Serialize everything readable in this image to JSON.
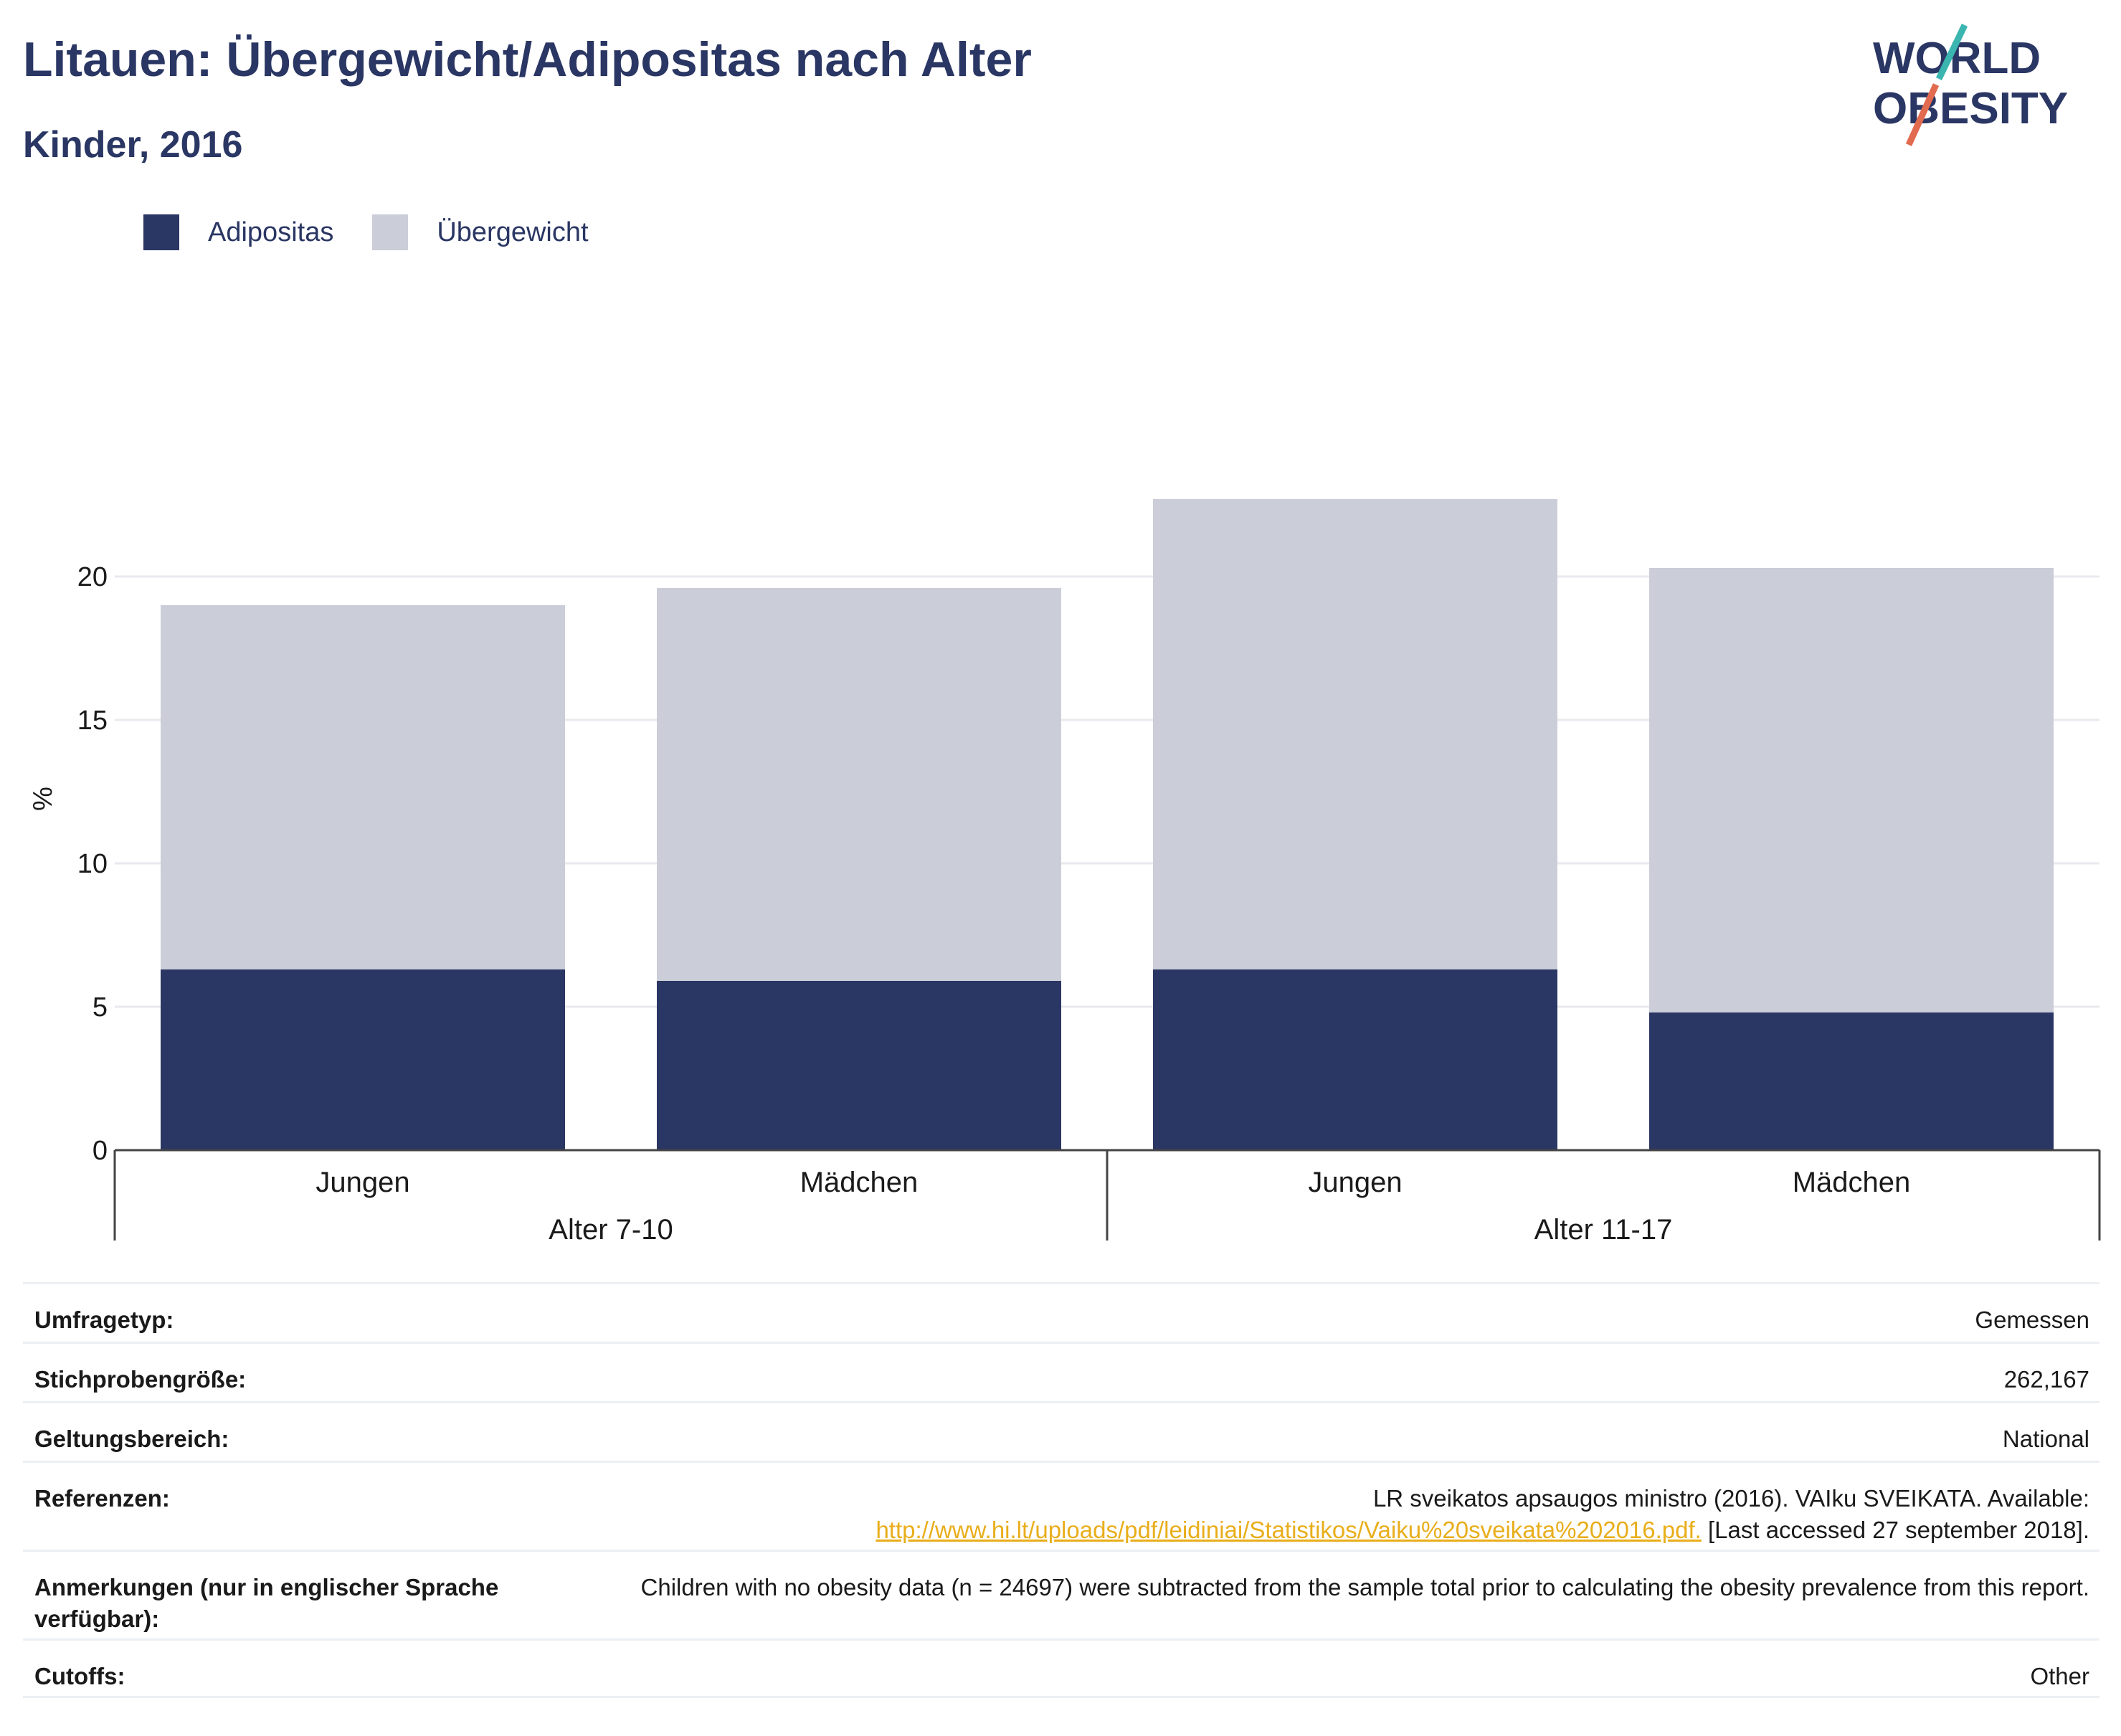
{
  "title": "Litauen: Übergewicht/Adipositas nach Alter",
  "subtitle": "Kinder, 2016",
  "logo": {
    "line1": "WORLD",
    "line2": "OBESITY",
    "accent_teal": "#3bb5b0",
    "accent_red": "#e26a4f"
  },
  "legend": [
    {
      "label": "Adipositas",
      "color": "#2a3663"
    },
    {
      "label": "Übergewicht",
      "color": "#cbcdd8"
    }
  ],
  "chart_data": {
    "type": "bar",
    "stacked": true,
    "categories": [
      "Jungen",
      "Mädchen",
      "Jungen",
      "Mädchen"
    ],
    "groups": [
      {
        "label": "Alter 7-10",
        "categories": [
          "Jungen",
          "Mädchen"
        ]
      },
      {
        "label": "Alter 11-17",
        "categories": [
          "Jungen",
          "Mädchen"
        ]
      }
    ],
    "series": [
      {
        "name": "Adipositas",
        "color": "#2a3663",
        "values": [
          6.3,
          5.9,
          6.3,
          4.8
        ]
      },
      {
        "name": "Übergewicht",
        "color": "#cbcdd8",
        "values": [
          12.7,
          13.7,
          16.4,
          15.5
        ]
      }
    ],
    "ylabel": "%",
    "ylim": [
      0,
      25
    ],
    "yticks": [
      0,
      5,
      10,
      15,
      20
    ],
    "grid": true,
    "legend_position": "top-left"
  },
  "meta": {
    "rows": [
      {
        "label": "Umfragetyp:",
        "value": "Gemessen"
      },
      {
        "label": "Stichprobengröße:",
        "value": "262,167"
      },
      {
        "label": "Geltungsbereich:",
        "value": "National"
      },
      {
        "label": "Referenzen:",
        "value_line1": "LR sveikatos apsaugos ministro (2016). VAIku SVEIKATA. Available:",
        "link": "http://www.hi.lt/uploads/pdf/leidiniai/Statistikos/Vaiku%20sveikata%202016.pdf.",
        "value_line2_suffix": " [Last accessed 27 september 2018]."
      },
      {
        "label": "Anmerkungen (nur in englischer Sprache verfügbar):",
        "value": "Children with no obesity data (n = 24697) were subtracted from the sample total prior to calculating the obesity prevalence from this report."
      },
      {
        "label": "Cutoffs:",
        "value": "Other"
      }
    ]
  }
}
